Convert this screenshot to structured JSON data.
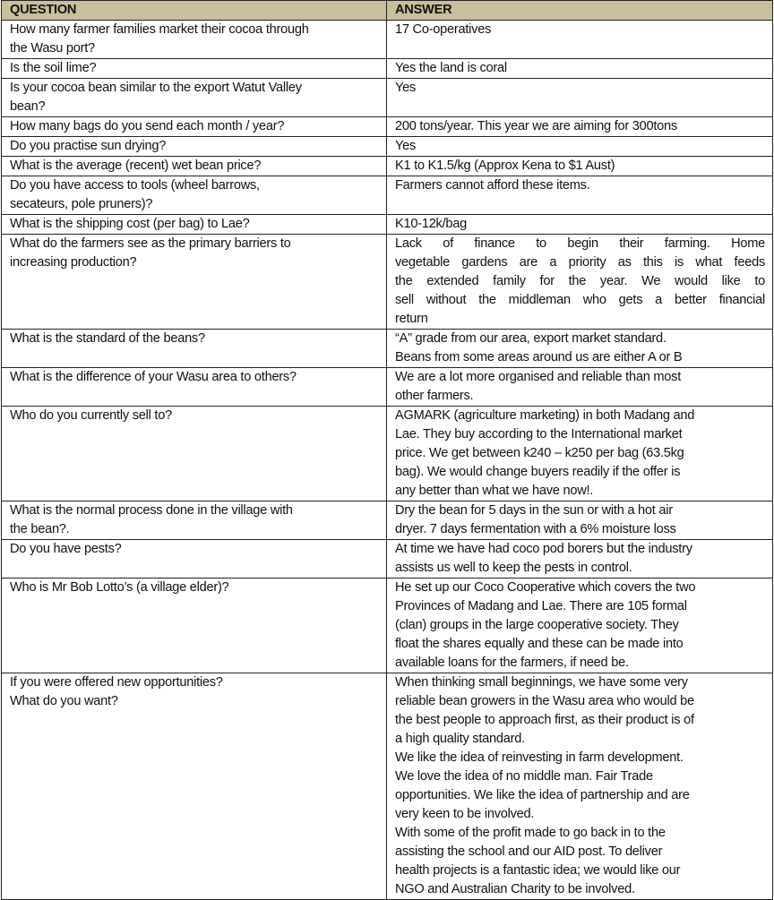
{
  "headers": {
    "question": "QUESTION",
    "answer": "ANSWER"
  },
  "header_color": "#c9bf9b",
  "rows": [
    {
      "q": [
        "How many farmer families market their cocoa through",
        "the Wasu port?"
      ],
      "a": [
        "17 Co-operatives"
      ]
    },
    {
      "q": [
        "Is the soil lime?"
      ],
      "a": [
        "Yes the land is coral"
      ]
    },
    {
      "q": [
        "Is your cocoa bean similar to the export Watut Valley",
        "bean?"
      ],
      "a": [
        "Yes"
      ]
    },
    {
      "q": [
        "How many bags do you send each month / year?"
      ],
      "a": [
        "200 tons/year.  This year we are aiming for 300tons"
      ]
    },
    {
      "q": [
        "Do you practise sun drying?"
      ],
      "a": [
        "Yes"
      ]
    },
    {
      "q": [
        "What is the average (recent) wet bean price?"
      ],
      "a": [
        "K1 to K1.5/kg  (Approx Kena to $1 Aust)"
      ]
    },
    {
      "q": [
        "Do you have access to tools (wheel barrows,",
        "secateurs, pole pruners)?"
      ],
      "a": [
        "Farmers cannot afford these items."
      ]
    },
    {
      "q": [
        "What is the shipping cost (per bag) to Lae?"
      ],
      "a": [
        "K10-12k/bag"
      ]
    },
    {
      "q": [
        "What do the farmers see as the primary barriers to",
        "increasing production?"
      ],
      "a": [
        "Lack of finance to begin their farming.   Home",
        "vegetable gardens are a priority as this is what feeds",
        "the extended family for the year.  We would like to",
        "sell without the middleman who gets a better financial",
        "return"
      ],
      "justify": true
    },
    {
      "q": [
        "What is the standard of the beans?"
      ],
      "a": [
        "“A” grade from our area, export market standard.",
        "Beans from some areas around us are either A or B"
      ]
    },
    {
      "q": [
        "What is the difference of your Wasu area to others?"
      ],
      "a": [
        "We are a lot more organised and reliable than most",
        "other farmers."
      ]
    },
    {
      "q": [
        "Who do you currently sell to?"
      ],
      "a": [
        "AGMARK (agriculture marketing) in both Madang and",
        "Lae.   They buy according to the International market",
        "price.  We get between k240 – k250 per bag (63.5kg",
        "bag).  We would change buyers readily if the offer is",
        "any better than what we have now!."
      ]
    },
    {
      "q": [
        "What is the normal process done in the village with",
        "the bean?."
      ],
      "a": [
        "Dry the bean for 5 days in the sun or with a hot air",
        "dryer. 7 days fermentation with a 6% moisture loss"
      ]
    },
    {
      "q": [
        "Do you have pests?"
      ],
      "a": [
        "At time we have had coco pod borers but the industry",
        "assists us well to keep the pests in control."
      ]
    },
    {
      "q": [
        "Who is Mr Bob Lotto’s (a village elder)?"
      ],
      "a": [
        "He set up our Coco Cooperative which covers the two",
        "Provinces of Madang and Lae.  There are 105 formal",
        "(clan) groups in the large cooperative society.  They",
        "float the shares equally and these can be made into",
        "available loans for the farmers, if need be."
      ]
    },
    {
      "q": [
        "If you were offered new opportunities?",
        "What do you want?"
      ],
      "a": [
        "When thinking small beginnings, we have some very",
        "reliable bean growers in the Wasu area who would be",
        "the best people to approach first, as their product is of",
        "a high quality standard.",
        "We like the idea of reinvesting in farm development.",
        "We love the idea of no middle man.  Fair Trade",
        "opportunities. We like the idea of partnership and are",
        "very keen to be involved.",
        "With some of the profit made to go back in to the",
        "assisting the school and our AID post. To deliver",
        "health projects is a fantastic idea; we would like our",
        "NGO and Australian Charity to be involved."
      ]
    }
  ]
}
